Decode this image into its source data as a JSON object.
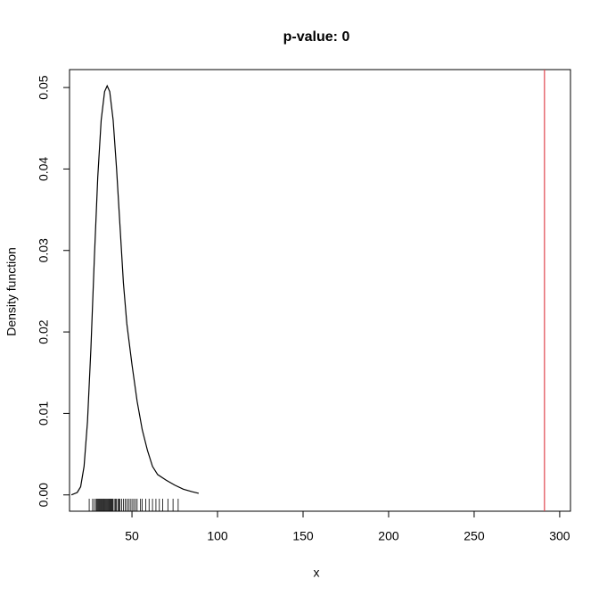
{
  "chart_data": {
    "type": "density",
    "title": "p-value: 0",
    "xlabel": "x",
    "ylabel": "Density function",
    "x": [
      14.6,
      18,
      20,
      22,
      24,
      26,
      28,
      30,
      32,
      34,
      35.5,
      37,
      39,
      41,
      43,
      45,
      47,
      50,
      53,
      56,
      59,
      62,
      65,
      70,
      75,
      80,
      85,
      89
    ],
    "values": [
      0.0,
      0.0003,
      0.001,
      0.0035,
      0.009,
      0.018,
      0.029,
      0.039,
      0.046,
      0.0495,
      0.0502,
      0.0495,
      0.046,
      0.04,
      0.033,
      0.026,
      0.021,
      0.016,
      0.0115,
      0.008,
      0.0055,
      0.0035,
      0.0025,
      0.0018,
      0.0012,
      0.0007,
      0.0004,
      0.0002
    ],
    "color": "#000000",
    "rug": [
      25,
      27,
      28,
      29,
      29.5,
      30,
      30.5,
      31,
      31.5,
      32,
      32.5,
      33,
      33.5,
      34,
      34.5,
      35,
      35.5,
      36,
      36.5,
      37,
      37.5,
      38,
      38.5,
      39,
      40,
      40.5,
      41,
      42,
      42.5,
      43,
      44,
      45,
      46,
      47,
      48,
      49,
      50,
      51,
      52,
      53,
      55,
      56,
      58,
      60,
      62,
      64,
      66,
      68,
      71,
      74,
      77
    ],
    "vline": 291.1,
    "vline_color": "#e0454f",
    "xlim": [
      13.5,
      306.3
    ],
    "ylim": [
      -0.002,
      0.0522
    ],
    "xticks": [
      50,
      100,
      150,
      200,
      250,
      300
    ],
    "yticks": [
      {
        "value": 0,
        "label": "0.00"
      },
      0.01,
      0.02,
      0.03,
      0.04,
      0.05
    ]
  }
}
